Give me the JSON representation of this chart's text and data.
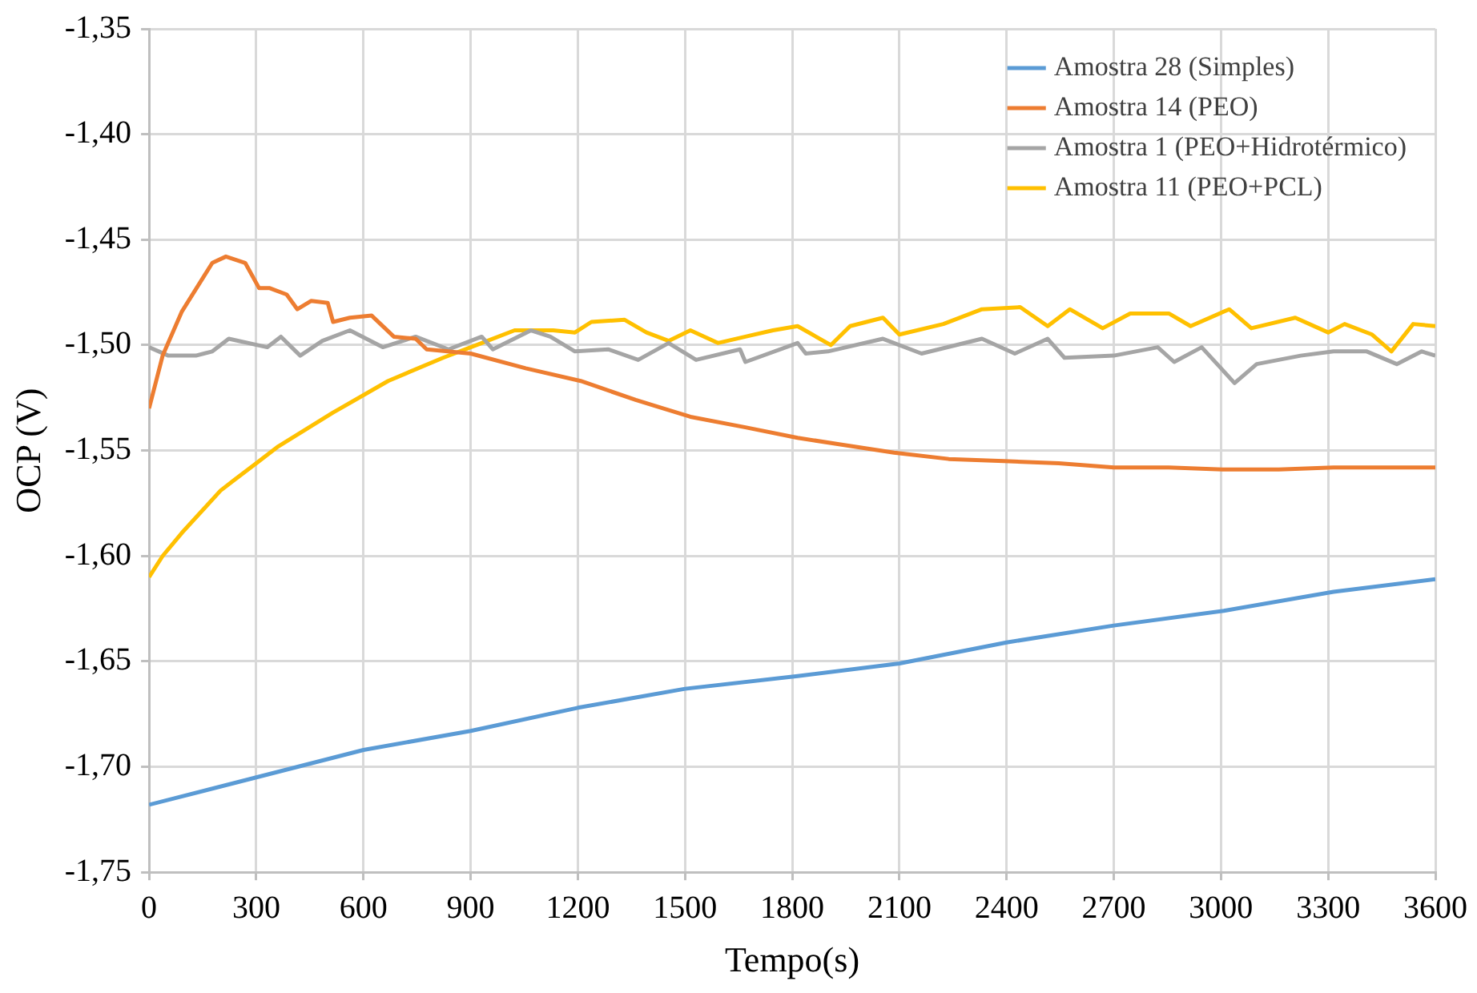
{
  "chart_data": {
    "type": "line",
    "xlabel": "Tempo(s)",
    "ylabel": "OCP (V)",
    "xlim": [
      0,
      3600
    ],
    "xticks": [
      0,
      300,
      600,
      900,
      1200,
      1500,
      1800,
      2100,
      2400,
      2700,
      3000,
      3300,
      3600
    ],
    "ylim": [
      -1.75,
      -1.35
    ],
    "yticks": [
      {
        "value": -1.75,
        "label": "-1,75"
      },
      {
        "value": -1.7,
        "label": "-1,70"
      },
      {
        "value": -1.65,
        "label": "-1,65"
      },
      {
        "value": -1.6,
        "label": "-1,60"
      },
      {
        "value": -1.55,
        "label": "-1,55"
      },
      {
        "value": -1.5,
        "label": "-1,50"
      },
      {
        "value": -1.45,
        "label": "-1,45"
      },
      {
        "value": -1.4,
        "label": "-1,40"
      },
      {
        "value": -1.35,
        "label": "-1,35"
      }
    ],
    "grid": true,
    "legend": "top right",
    "marker": "none",
    "line_style": "solid",
    "series": [
      {
        "name": "Amostra 28 (Simples)",
        "color": "#5b9bd5",
        "x": [
          0,
          300,
          600,
          900,
          1200,
          1500,
          1815,
          2100,
          2400,
          2700,
          3008,
          3315,
          3600
        ],
        "values": [
          -1.718,
          -1.705,
          -1.692,
          -1.683,
          -1.672,
          -1.663,
          -1.657,
          -1.651,
          -1.641,
          -1.633,
          -1.626,
          -1.617,
          -1.611
        ]
      },
      {
        "name": "Amostra 14 (PEO)",
        "color": "#ed7d31",
        "x": [
          0,
          38,
          92,
          177,
          215,
          269,
          308,
          338,
          385,
          415,
          454,
          500,
          515,
          562,
          623,
          685,
          746,
          777,
          900,
          1054,
          1208,
          1362,
          1515,
          1669,
          1815,
          1931,
          2085,
          2238,
          2392,
          2546,
          2700,
          2854,
          3008,
          3162,
          3315,
          3600
        ],
        "values": [
          -1.53,
          -1.505,
          -1.484,
          -1.461,
          -1.458,
          -1.461,
          -1.473,
          -1.473,
          -1.476,
          -1.483,
          -1.479,
          -1.48,
          -1.489,
          -1.487,
          -1.486,
          -1.496,
          -1.497,
          -1.502,
          -1.504,
          -1.511,
          -1.517,
          -1.526,
          -1.534,
          -1.539,
          -1.544,
          -1.547,
          -1.551,
          -1.554,
          -1.555,
          -1.556,
          -1.558,
          -1.558,
          -1.559,
          -1.559,
          -1.558,
          -1.558
        ]
      },
      {
        "name": "Amostra 1 (PEO+Hidrotérmico)",
        "color": "#a5a5a5",
        "x": [
          0,
          54,
          131,
          177,
          223,
          331,
          369,
          423,
          485,
          562,
          654,
          746,
          838,
          931,
          962,
          1069,
          1123,
          1192,
          1285,
          1369,
          1454,
          1531,
          1654,
          1669,
          1815,
          1838,
          1900,
          2054,
          2162,
          2331,
          2423,
          2515,
          2562,
          2700,
          2823,
          2869,
          2946,
          3038,
          3100,
          3223,
          3315,
          3408,
          3492,
          3562,
          3600
        ],
        "values": [
          -1.501,
          -1.505,
          -1.505,
          -1.503,
          -1.497,
          -1.501,
          -1.496,
          -1.505,
          -1.498,
          -1.493,
          -1.501,
          -1.496,
          -1.502,
          -1.496,
          -1.502,
          -1.493,
          -1.496,
          -1.503,
          -1.502,
          -1.507,
          -1.499,
          -1.507,
          -1.502,
          -1.508,
          -1.499,
          -1.504,
          -1.503,
          -1.497,
          -1.504,
          -1.497,
          -1.504,
          -1.497,
          -1.506,
          -1.505,
          -1.501,
          -1.508,
          -1.501,
          -1.518,
          -1.509,
          -1.505,
          -1.503,
          -1.503,
          -1.509,
          -1.503,
          -1.505
        ]
      },
      {
        "name": "Amostra 11 (PEO+PCL)",
        "color": "#ffc000",
        "x": [
          0,
          38,
          92,
          200,
          238,
          300,
          362,
          515,
          669,
          823,
          931,
          1023,
          1131,
          1192,
          1238,
          1331,
          1392,
          1454,
          1515,
          1592,
          1669,
          1746,
          1815,
          1908,
          1962,
          2054,
          2100,
          2223,
          2331,
          2438,
          2515,
          2577,
          2669,
          2746,
          2854,
          2915,
          3023,
          3085,
          3208,
          3300,
          3346,
          3423,
          3477,
          3538,
          3600
        ],
        "values": [
          -1.61,
          -1.6,
          -1.589,
          -1.569,
          -1.564,
          -1.556,
          -1.548,
          -1.532,
          -1.517,
          -1.506,
          -1.499,
          -1.493,
          -1.493,
          -1.494,
          -1.489,
          -1.488,
          -1.494,
          -1.498,
          -1.493,
          -1.499,
          -1.496,
          -1.493,
          -1.491,
          -1.5,
          -1.491,
          -1.487,
          -1.495,
          -1.49,
          -1.483,
          -1.482,
          -1.491,
          -1.483,
          -1.492,
          -1.485,
          -1.485,
          -1.491,
          -1.483,
          -1.492,
          -1.487,
          -1.494,
          -1.49,
          -1.495,
          -1.503,
          -1.49,
          -1.491
        ]
      }
    ]
  }
}
